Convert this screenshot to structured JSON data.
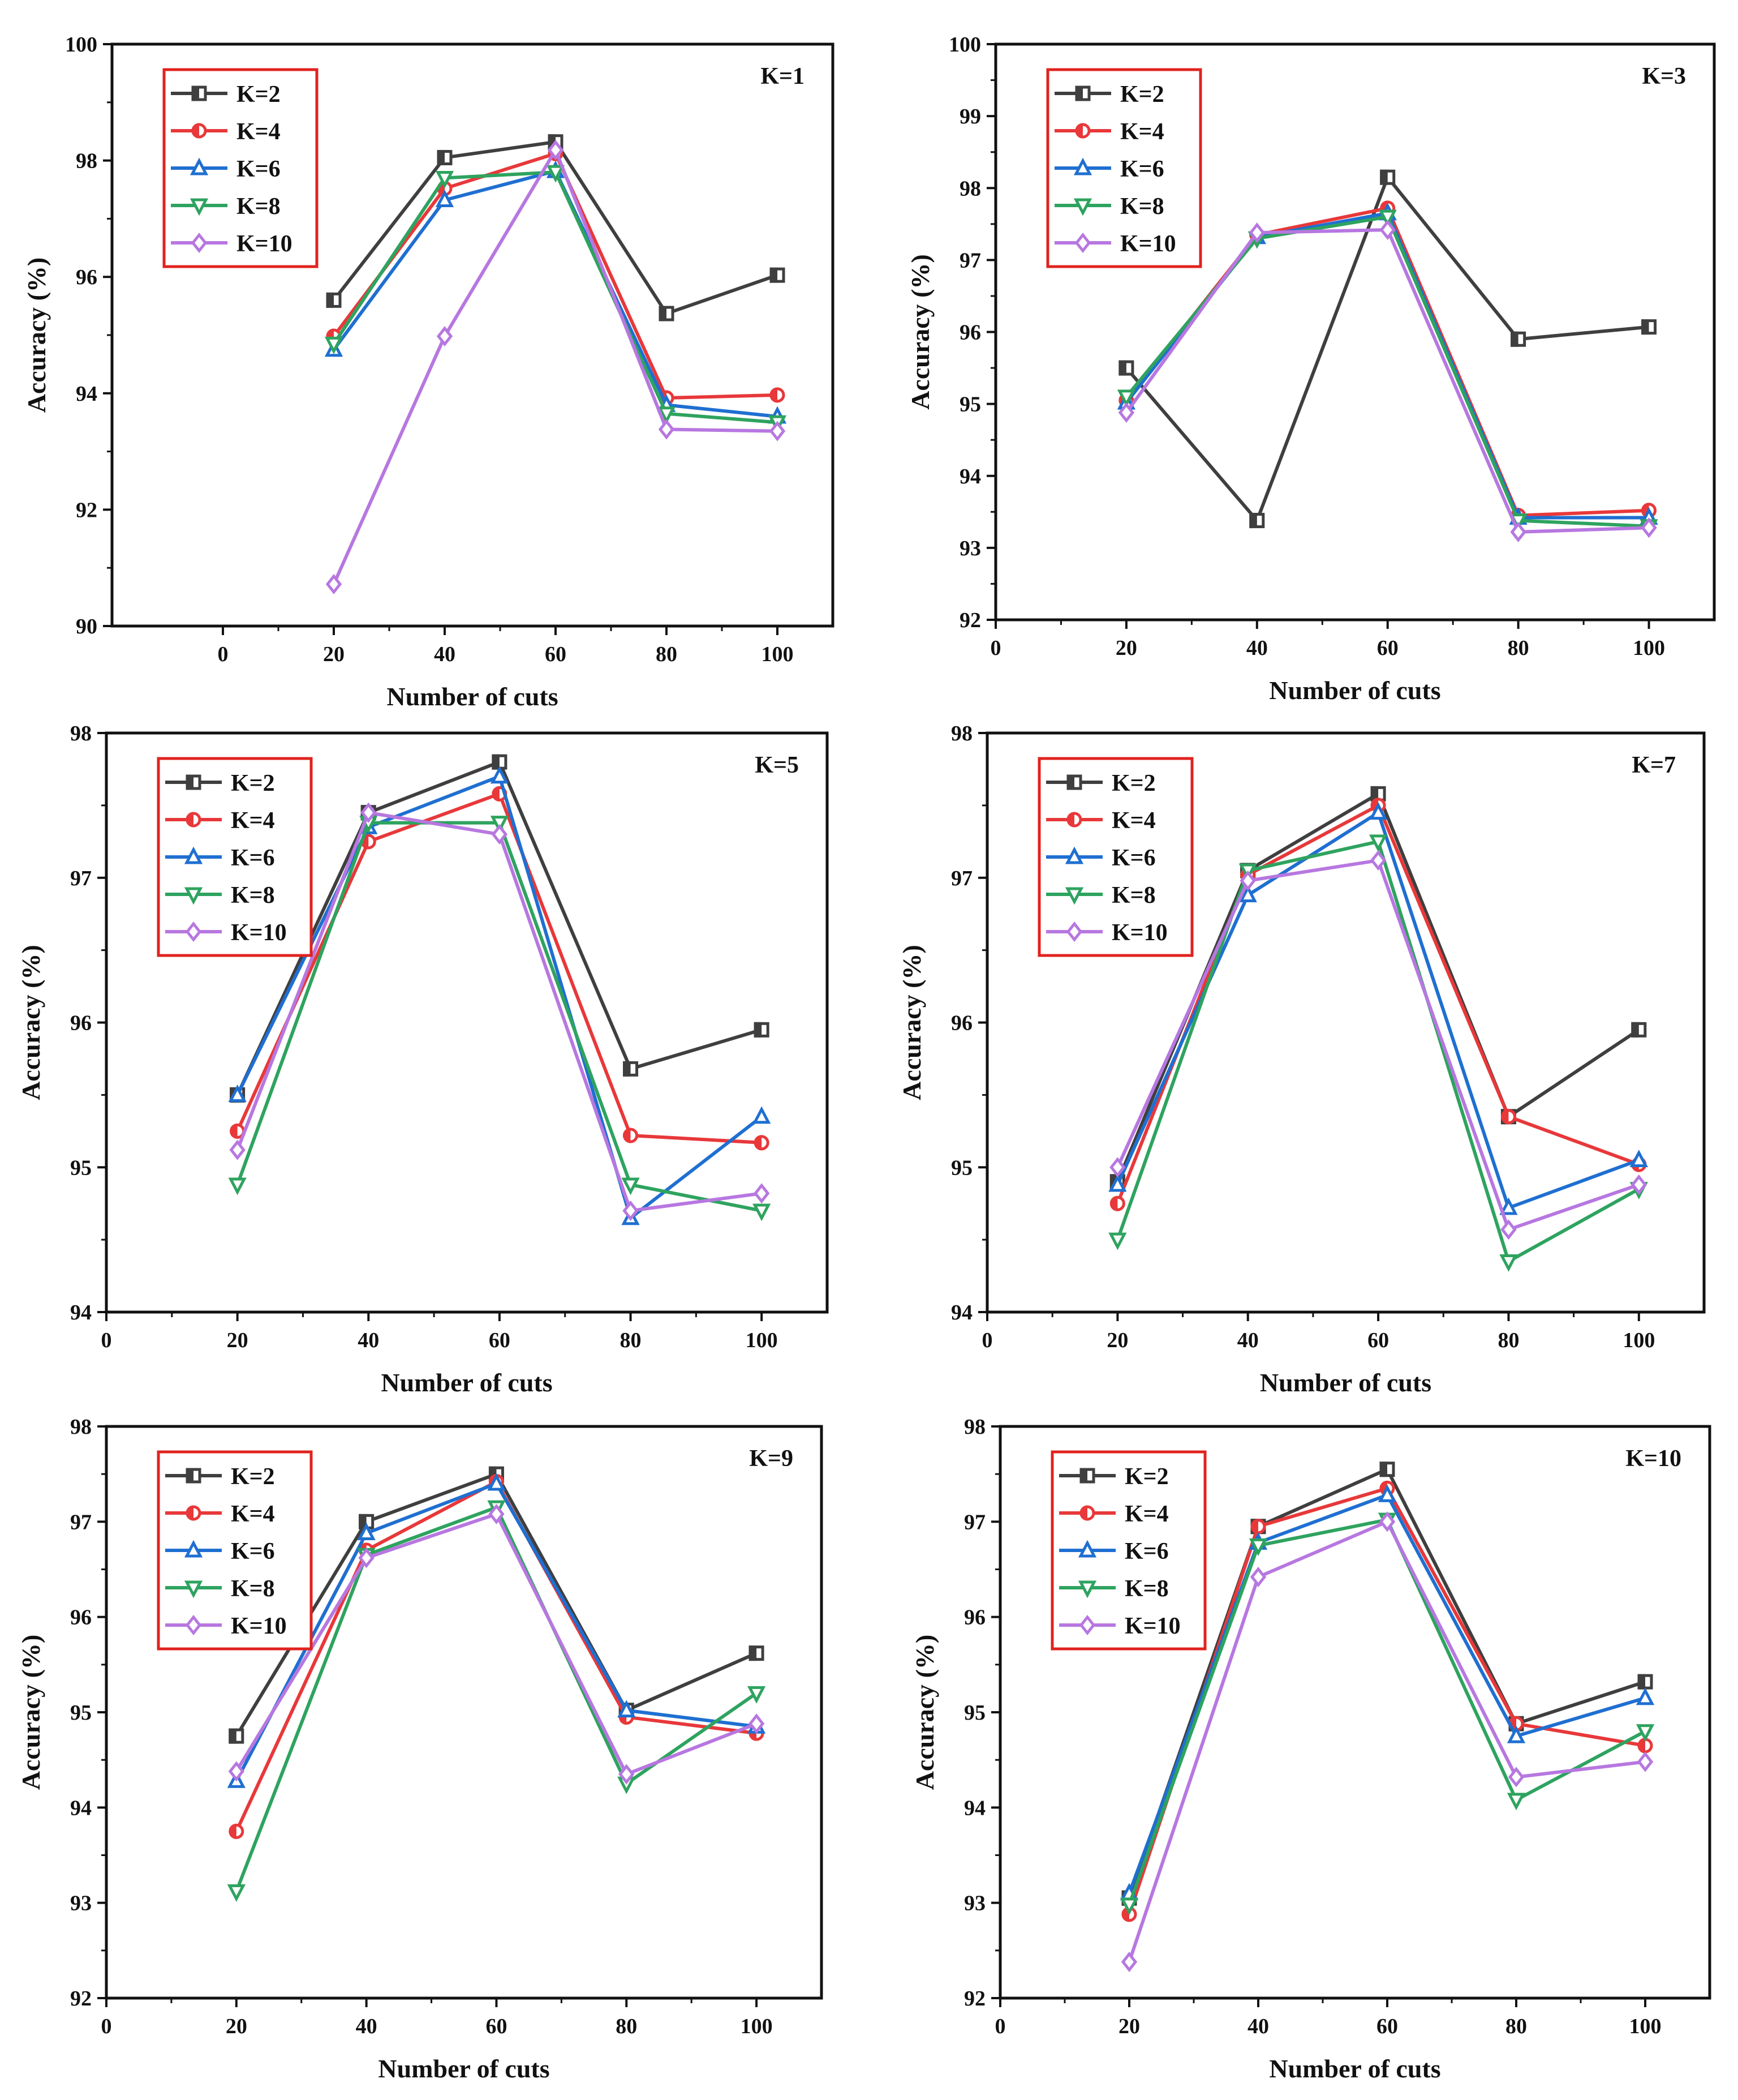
{
  "colors": {
    "K=2": "#3f3f3f",
    "K=4": "#e8383a",
    "K=6": "#1f6fd1",
    "K=8": "#2ea35f",
    "K=10": "#b777e0",
    "legend_border": "#e0231f"
  },
  "chart_data": [
    {
      "type": "line",
      "title": "K=1",
      "xlabel": "Number of cuts",
      "ylabel": "Accuracy (%)",
      "xlim": [
        -20,
        110
      ],
      "ylim": [
        90,
        100
      ],
      "xticks": [
        0,
        20,
        40,
        60,
        80,
        100
      ],
      "yticks": [
        90,
        92,
        94,
        96,
        98,
        100
      ],
      "grid": false,
      "legend_position": "top-left",
      "x": [
        20,
        40,
        60,
        80,
        100
      ],
      "series": [
        {
          "name": "K=2",
          "marker": "square",
          "values": [
            95.6,
            98.05,
            98.32,
            95.37,
            96.03
          ]
        },
        {
          "name": "K=4",
          "marker": "circle",
          "values": [
            94.98,
            97.52,
            98.12,
            93.92,
            93.97
          ]
        },
        {
          "name": "K=6",
          "marker": "triangle-up",
          "values": [
            94.75,
            97.32,
            97.82,
            93.8,
            93.6
          ]
        },
        {
          "name": "K=8",
          "marker": "triangle-down",
          "values": [
            94.85,
            97.7,
            97.8,
            93.65,
            93.5
          ]
        },
        {
          "name": "K=10",
          "marker": "diamond",
          "values": [
            90.72,
            94.98,
            98.18,
            93.38,
            93.35
          ]
        }
      ]
    },
    {
      "type": "line",
      "title": "K=3",
      "xlabel": "Number of cuts",
      "ylabel": "Accuracy (%)",
      "xlim": [
        0,
        110
      ],
      "ylim": [
        92,
        100
      ],
      "xticks": [
        0,
        20,
        40,
        60,
        80,
        100
      ],
      "yticks": [
        92,
        93,
        94,
        95,
        96,
        97,
        98,
        99,
        100
      ],
      "grid": false,
      "legend_position": "top-left",
      "x": [
        20,
        40,
        60,
        80,
        100
      ],
      "series": [
        {
          "name": "K=2",
          "marker": "square",
          "values": [
            95.5,
            93.38,
            98.15,
            95.9,
            96.07
          ]
        },
        {
          "name": "K=4",
          "marker": "circle",
          "values": [
            95.05,
            97.35,
            97.72,
            93.45,
            93.52
          ]
        },
        {
          "name": "K=6",
          "marker": "triangle-up",
          "values": [
            95.02,
            97.32,
            97.65,
            93.42,
            93.42
          ]
        },
        {
          "name": "K=8",
          "marker": "triangle-down",
          "values": [
            95.1,
            97.3,
            97.6,
            93.38,
            93.3
          ]
        },
        {
          "name": "K=10",
          "marker": "diamond",
          "values": [
            94.88,
            97.38,
            97.42,
            93.22,
            93.28
          ]
        }
      ]
    },
    {
      "type": "line",
      "title": "K=5",
      "xlabel": "Number of cuts",
      "ylabel": "Accuracy (%)",
      "xlim": [
        0,
        110
      ],
      "ylim": [
        94,
        98
      ],
      "xticks": [
        0,
        20,
        40,
        60,
        80,
        100
      ],
      "yticks": [
        94,
        95,
        96,
        97,
        98
      ],
      "grid": false,
      "legend_position": "top-left",
      "x": [
        20,
        40,
        60,
        80,
        100
      ],
      "series": [
        {
          "name": "K=2",
          "marker": "square",
          "values": [
            95.5,
            97.45,
            97.8,
            95.68,
            95.95
          ]
        },
        {
          "name": "K=4",
          "marker": "circle",
          "values": [
            95.25,
            97.25,
            97.58,
            95.22,
            95.17
          ]
        },
        {
          "name": "K=6",
          "marker": "triangle-up",
          "values": [
            95.5,
            97.35,
            97.7,
            94.65,
            95.35
          ]
        },
        {
          "name": "K=8",
          "marker": "triangle-down",
          "values": [
            94.88,
            97.38,
            97.38,
            94.88,
            94.7
          ]
        },
        {
          "name": "K=10",
          "marker": "diamond",
          "values": [
            95.12,
            97.45,
            97.3,
            94.7,
            94.82
          ]
        }
      ]
    },
    {
      "type": "line",
      "title": "K=7",
      "xlabel": "Number of cuts",
      "ylabel": "Accuracy (%)",
      "xlim": [
        0,
        110
      ],
      "ylim": [
        94,
        98
      ],
      "xticks": [
        0,
        20,
        40,
        60,
        80,
        100
      ],
      "yticks": [
        94,
        95,
        96,
        97,
        98
      ],
      "grid": false,
      "legend_position": "top-left",
      "x": [
        20,
        40,
        60,
        80,
        100
      ],
      "series": [
        {
          "name": "K=2",
          "marker": "square",
          "values": [
            94.9,
            97.05,
            97.58,
            95.35,
            95.95
          ]
        },
        {
          "name": "K=4",
          "marker": "circle",
          "values": [
            94.75,
            97.02,
            97.5,
            95.35,
            95.02
          ]
        },
        {
          "name": "K=6",
          "marker": "triangle-up",
          "values": [
            94.88,
            96.88,
            97.45,
            94.72,
            95.05
          ]
        },
        {
          "name": "K=8",
          "marker": "triangle-down",
          "values": [
            94.5,
            97.05,
            97.25,
            94.35,
            94.85
          ]
        },
        {
          "name": "K=10",
          "marker": "diamond",
          "values": [
            95.0,
            96.98,
            97.12,
            94.57,
            94.88
          ]
        }
      ]
    },
    {
      "type": "line",
      "title": "K=9",
      "xlabel": "Number of cuts",
      "ylabel": "Accuracy (%)",
      "xlim": [
        0,
        110
      ],
      "ylim": [
        92,
        98
      ],
      "xticks": [
        0,
        20,
        40,
        60,
        80,
        100
      ],
      "yticks": [
        92,
        93,
        94,
        95,
        96,
        97,
        98
      ],
      "grid": false,
      "legend_position": "top-left",
      "x": [
        20,
        40,
        60,
        80,
        100
      ],
      "series": [
        {
          "name": "K=2",
          "marker": "square",
          "values": [
            94.75,
            97.0,
            97.5,
            95.02,
            95.62
          ]
        },
        {
          "name": "K=4",
          "marker": "circle",
          "values": [
            93.75,
            96.7,
            97.42,
            94.95,
            94.78
          ]
        },
        {
          "name": "K=6",
          "marker": "triangle-up",
          "values": [
            94.28,
            96.88,
            97.4,
            95.02,
            94.85
          ]
        },
        {
          "name": "K=8",
          "marker": "triangle-down",
          "values": [
            93.12,
            96.65,
            97.15,
            94.25,
            95.2
          ]
        },
        {
          "name": "K=10",
          "marker": "diamond",
          "values": [
            94.38,
            96.62,
            97.08,
            94.35,
            94.88
          ]
        }
      ]
    },
    {
      "type": "line",
      "title": "K=10",
      "xlabel": "Number of cuts",
      "ylabel": "Accuracy (%)",
      "xlim": [
        0,
        110
      ],
      "ylim": [
        92,
        98
      ],
      "xticks": [
        0,
        20,
        40,
        60,
        80,
        100
      ],
      "yticks": [
        92,
        93,
        94,
        95,
        96,
        97,
        98
      ],
      "grid": false,
      "legend_position": "top-left",
      "x": [
        20,
        40,
        60,
        80,
        100
      ],
      "series": [
        {
          "name": "K=2",
          "marker": "square",
          "values": [
            93.05,
            96.95,
            97.55,
            94.88,
            95.32
          ]
        },
        {
          "name": "K=4",
          "marker": "circle",
          "values": [
            92.88,
            96.95,
            97.35,
            94.88,
            94.65
          ]
        },
        {
          "name": "K=6",
          "marker": "triangle-up",
          "values": [
            93.1,
            96.78,
            97.28,
            94.75,
            95.15
          ]
        },
        {
          "name": "K=8",
          "marker": "triangle-down",
          "values": [
            92.98,
            96.75,
            97.02,
            94.08,
            94.8
          ]
        },
        {
          "name": "K=10",
          "marker": "diamond",
          "values": [
            92.38,
            96.42,
            97.0,
            94.32,
            94.48
          ]
        }
      ]
    }
  ]
}
